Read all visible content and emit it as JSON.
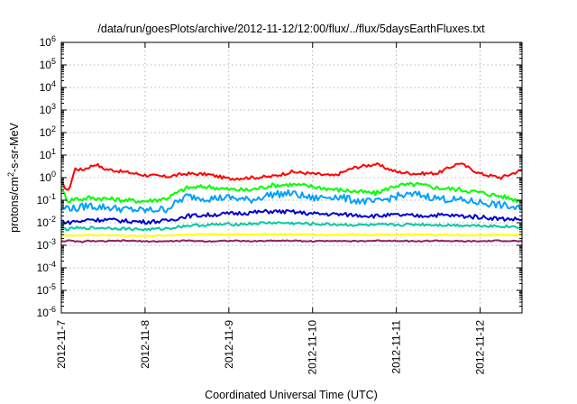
{
  "chart_data": {
    "type": "line",
    "title": "/data/run/goesPlots/archive/2012-11-12/12:00/flux/../flux/5daysEarthFluxes.txt",
    "xlabel": "Coordinated Universal Time (UTC)",
    "ylabel_parts": [
      "protons/cm",
      "2",
      "-s-sr-MeV"
    ],
    "x_scale": "time",
    "x_ticks": [
      "2012-11-7",
      "2012-11-8",
      "2012-11-9",
      "2012-11-10",
      "2012-11-11",
      "2012-11-12"
    ],
    "xlim": [
      "2012-11-07 00:00",
      "2012-11-12 12:00"
    ],
    "y_scale": "log",
    "ylim": [
      1e-06,
      1000000.0
    ],
    "y_tick_base": "10",
    "y_tick_exponents": [
      "-6",
      "-5",
      "-4",
      "-3",
      "-2",
      "-1",
      "0",
      "1",
      "2",
      "3",
      "4",
      "5",
      "6"
    ],
    "grid": true,
    "legend": false,
    "x_hours": [
      0,
      2,
      4,
      6,
      8,
      10,
      12,
      18,
      24,
      30,
      36,
      42,
      48,
      54,
      60,
      66,
      72,
      78,
      84,
      90,
      96,
      102,
      108,
      114,
      120,
      126,
      132
    ],
    "series": [
      {
        "color": "#ff0000",
        "values": [
          0.6,
          0.25,
          2.5,
          2.2,
          3.0,
          4.0,
          2.5,
          1.8,
          1.3,
          1.1,
          1.5,
          1.4,
          0.9,
          1.0,
          1.1,
          1.8,
          1.5,
          1.2,
          2.8,
          4.0,
          1.8,
          1.5,
          1.6,
          4.5,
          1.5,
          1.0,
          2.2
        ]
      },
      {
        "color": "#00ff00",
        "values": [
          0.3,
          0.09,
          0.12,
          0.11,
          0.13,
          0.12,
          0.12,
          0.1,
          0.09,
          0.12,
          0.35,
          0.4,
          0.3,
          0.28,
          0.45,
          0.5,
          0.4,
          0.3,
          0.25,
          0.2,
          0.45,
          0.5,
          0.35,
          0.3,
          0.22,
          0.15,
          0.09
        ]
      },
      {
        "color": "#00a0ff",
        "values": [
          0.04,
          0.05,
          0.04,
          0.05,
          0.06,
          0.05,
          0.05,
          0.04,
          0.035,
          0.04,
          0.15,
          0.12,
          0.13,
          0.1,
          0.18,
          0.2,
          0.12,
          0.15,
          0.1,
          0.08,
          0.15,
          0.18,
          0.12,
          0.1,
          0.08,
          0.06,
          0.04
        ]
      },
      {
        "color": "#0000d0",
        "values": [
          0.012,
          0.01,
          0.012,
          0.011,
          0.015,
          0.013,
          0.014,
          0.012,
          0.011,
          0.012,
          0.02,
          0.022,
          0.025,
          0.028,
          0.032,
          0.03,
          0.025,
          0.024,
          0.022,
          0.02,
          0.022,
          0.02,
          0.022,
          0.02,
          0.018,
          0.015,
          0.014
        ]
      },
      {
        "color": "#00c8a0",
        "values": [
          0.006,
          0.005,
          0.006,
          0.0055,
          0.006,
          0.0058,
          0.006,
          0.0055,
          0.005,
          0.0055,
          0.0075,
          0.008,
          0.0085,
          0.009,
          0.01,
          0.0095,
          0.0088,
          0.0085,
          0.008,
          0.0078,
          0.008,
          0.0085,
          0.008,
          0.0078,
          0.0075,
          0.007,
          0.0065
        ]
      },
      {
        "color": "#ffff00",
        "values": [
          0.0028,
          0.0026,
          0.0028,
          0.0027,
          0.0029,
          0.0028,
          0.0028,
          0.0027,
          0.0026,
          0.0027,
          0.003,
          0.0031,
          0.003,
          0.003,
          0.0031,
          0.003,
          0.003,
          0.0029,
          0.003,
          0.0029,
          0.003,
          0.0029,
          0.0029,
          0.0028,
          0.0028,
          0.0029,
          0.0028
        ]
      },
      {
        "color": "#902060",
        "values": [
          0.0015,
          0.0016,
          0.0015,
          0.0014,
          0.0016,
          0.0015,
          0.0015,
          0.0016,
          0.0015,
          0.0015,
          0.0016,
          0.0015,
          0.0016,
          0.0015,
          0.0016,
          0.0016,
          0.0015,
          0.0016,
          0.0015,
          0.0016,
          0.0016,
          0.0015,
          0.0016,
          0.0015,
          0.0015,
          0.0016,
          0.0015
        ]
      }
    ]
  }
}
